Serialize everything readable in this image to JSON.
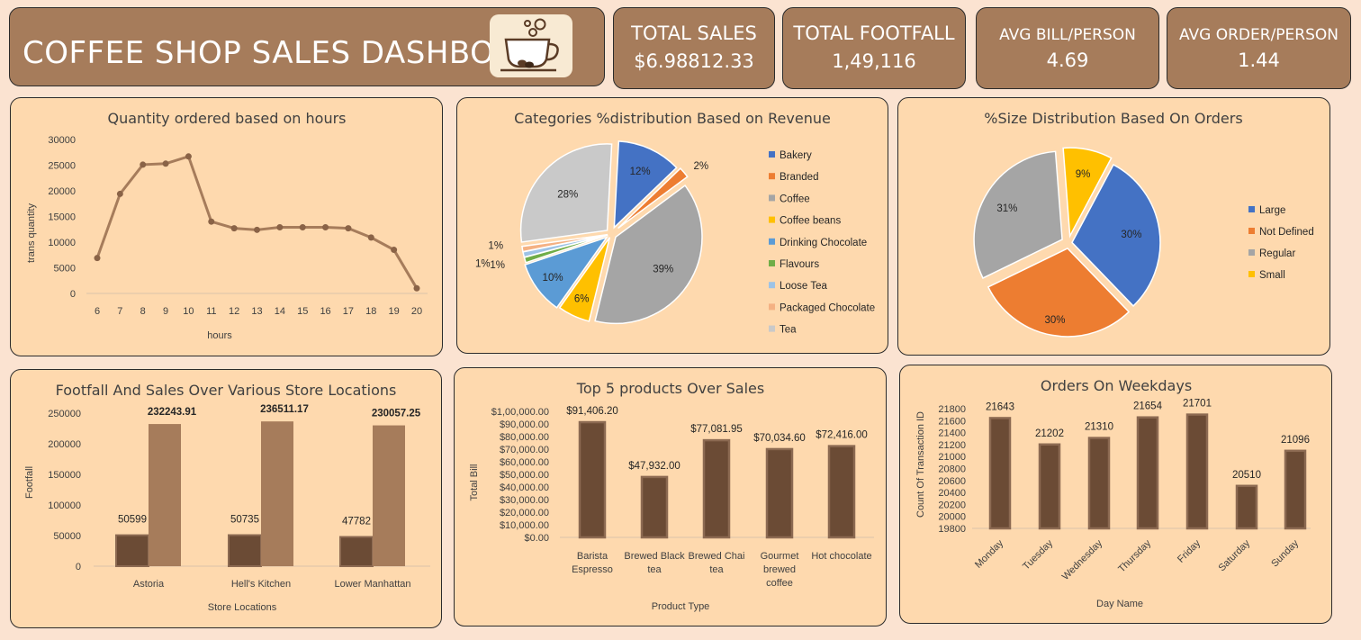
{
  "header": {
    "title": "COFFEE SHOP SALES DASHBOARD",
    "logo_icon": "coffee-cup-icon"
  },
  "kpis": [
    {
      "label": "TOTAL SALES",
      "value": "$6.98812.33"
    },
    {
      "label": "TOTAL FOOTFALL",
      "value": "1,49,116"
    },
    {
      "label": "AVG BILL/PERSON",
      "value": "4.69"
    },
    {
      "label": "AVG ORDER/PERSON",
      "value": "1.44"
    }
  ],
  "colors": {
    "header_bg": "#a67c5b",
    "panel_bg": "#fed9ae",
    "page_bg": "#fbe3d1",
    "line": "#a67c5b",
    "bar_dark": "#6b4b35",
    "bar_light": "#a67c5b"
  },
  "chart_data": [
    {
      "id": "hours",
      "type": "line",
      "title": "Quantity ordered based on hours",
      "xlabel": "hours",
      "ylabel": "trans quantity",
      "x": [
        6,
        7,
        8,
        9,
        10,
        11,
        12,
        13,
        14,
        15,
        16,
        17,
        18,
        19,
        20
      ],
      "y_ticks": [
        "30000",
        "25000",
        "20000",
        "15000",
        "10000",
        "5000",
        "0"
      ],
      "ylim": [
        0,
        30000
      ],
      "series": [
        {
          "values": [
            6900,
            19400,
            25100,
            25300,
            26700,
            14000,
            12700,
            12400,
            12900,
            12900,
            12900,
            12700,
            10900,
            8500,
            1000
          ]
        }
      ]
    },
    {
      "id": "categories",
      "type": "pie",
      "title": "Categories %distribution Based on Revenue",
      "legend_position": "right",
      "slices": [
        {
          "name": "Bakery",
          "value": 12,
          "label": "12%",
          "color": "#4472c4"
        },
        {
          "name": "Branded",
          "value": 2,
          "label": "2%",
          "color": "#ed7d31"
        },
        {
          "name": "Coffee",
          "value": 39,
          "label": "39%",
          "color": "#a5a5a5"
        },
        {
          "name": "Coffee beans",
          "value": 6,
          "label": "6%",
          "color": "#ffc000"
        },
        {
          "name": "Drinking Chocolate",
          "value": 10,
          "label": "10%",
          "color": "#5b9bd5"
        },
        {
          "name": "Flavours",
          "value": 1,
          "label": "1%",
          "color": "#70ad47"
        },
        {
          "name": "Loose Tea",
          "value": 1,
          "label": "1%",
          "color": "#9dc3e6"
        },
        {
          "name": "Packaged Chocolate",
          "value": 1,
          "label": "1%",
          "color": "#f4b183"
        },
        {
          "name": "Tea",
          "value": 28,
          "label": "28%",
          "color": "#c9c9c9"
        }
      ]
    },
    {
      "id": "sizes",
      "type": "pie",
      "title": "%Size Distribution Based On Orders",
      "legend_position": "right",
      "slices": [
        {
          "name": "Large",
          "value": 30,
          "label": "30%",
          "color": "#4472c4"
        },
        {
          "name": "Not Defined",
          "value": 30,
          "label": "30%",
          "color": "#ed7d31"
        },
        {
          "name": "Regular",
          "value": 31,
          "label": "31%",
          "color": "#a5a5a5"
        },
        {
          "name": "Small",
          "value": 9,
          "label": "9%",
          "color": "#ffc000"
        }
      ]
    },
    {
      "id": "stores",
      "type": "bar",
      "title": "Footfall And Sales Over Various Store Locations",
      "xlabel": "Store Locations",
      "ylabel": "Footfall",
      "categories": [
        "Astoria",
        "Hell's Kitchen",
        "Lower Manhattan"
      ],
      "y_ticks": [
        "250000",
        "200000",
        "150000",
        "100000",
        "50000",
        "0"
      ],
      "ylim": [
        0,
        250000
      ],
      "series": [
        {
          "values": [
            50599,
            50735,
            47782
          ],
          "labels": [
            "50599",
            "50735",
            "47782"
          ]
        },
        {
          "values": [
            232243.91,
            236511.17,
            230057.25
          ],
          "labels": [
            "232243.91",
            "236511.17",
            "230057.25"
          ]
        }
      ]
    },
    {
      "id": "products",
      "type": "bar",
      "title": "Top 5 products Over Sales",
      "xlabel": "Product Type",
      "ylabel": "Total Bill",
      "categories": [
        [
          "Barista",
          "Espresso"
        ],
        [
          "Brewed Black",
          "tea"
        ],
        [
          "Brewed Chai",
          "tea"
        ],
        [
          "Gourmet",
          "brewed",
          "coffee"
        ],
        [
          "Hot chocolate"
        ]
      ],
      "y_ticks": [
        "$1,00,000.00",
        "$90,000.00",
        "$80,000.00",
        "$70,000.00",
        "$60,000.00",
        "$50,000.00",
        "$40,000.00",
        "$30,000.00",
        "$20,000.00",
        "$10,000.00",
        "$0.00"
      ],
      "ylim": [
        0,
        100000
      ],
      "values": [
        91406.2,
        47932.0,
        77081.95,
        70034.6,
        72416.0
      ],
      "labels": [
        "$91,406.20",
        "$47,932.00",
        "$77,081.95",
        "$70,034.60",
        "$72,416.00"
      ]
    },
    {
      "id": "weekdays",
      "type": "bar",
      "title": "Orders On Weekdays",
      "xlabel": "Day Name",
      "ylabel": "Count Of Transaction ID",
      "categories": [
        "Monday",
        "Tuesday",
        "Wednesday",
        "Thursday",
        "Friday",
        "Saturday",
        "Sunday"
      ],
      "y_ticks": [
        "21800",
        "21600",
        "21400",
        "21200",
        "21000",
        "20800",
        "20600",
        "20400",
        "20200",
        "20000",
        "19800"
      ],
      "ylim": [
        19800,
        21800
      ],
      "values": [
        21643,
        21202,
        21310,
        21654,
        21701,
        20510,
        21096
      ],
      "labels": [
        "21643",
        "21202",
        "21310",
        "21654",
        "21701",
        "20510",
        "21096"
      ]
    }
  ]
}
